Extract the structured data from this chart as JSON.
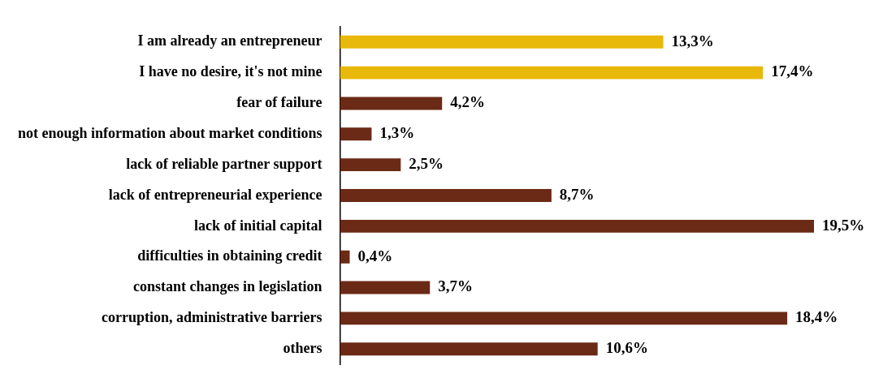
{
  "chart_data": {
    "type": "bar",
    "orientation": "horizontal",
    "categories": [
      "I am already an entrepreneur",
      "I have no desire, it's not mine",
      "fear of failure",
      "not enough information about market conditions",
      "lack of reliable partner support",
      "lack of entrepreneurial experience",
      "lack of initial capital",
      "difficulties in obtaining credit",
      "constant changes in legislation",
      "corruption, administrative barriers",
      "others"
    ],
    "values": [
      13.3,
      17.4,
      4.2,
      1.3,
      2.5,
      8.7,
      19.5,
      0.4,
      3.7,
      18.4,
      10.6
    ],
    "value_labels": [
      "13,3%",
      "17,4%",
      "4,2%",
      "1,3%",
      "2,5%",
      "8,7%",
      "19,5%",
      "0,4%",
      "3,7%",
      "18,4%",
      "10,6%"
    ],
    "colors": [
      "#e8b80a",
      "#e8b80a",
      "#6b2a16",
      "#6b2a16",
      "#6b2a16",
      "#6b2a16",
      "#6b2a16",
      "#6b2a16",
      "#6b2a16",
      "#6b2a16",
      "#6b2a16"
    ],
    "grid": false,
    "legend": false
  }
}
